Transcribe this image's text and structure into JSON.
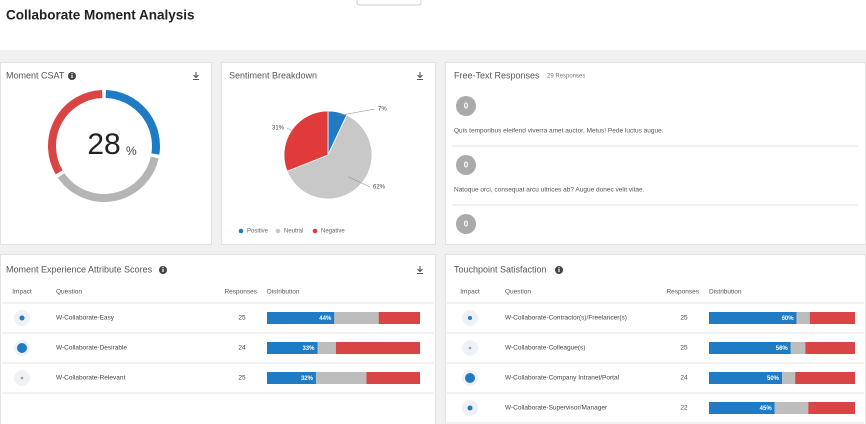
{
  "header": {
    "title": "Collaborate Moment Analysis"
  },
  "csat": {
    "title": "Moment CSAT",
    "score": 28,
    "unit": "%",
    "segments": [
      {
        "color": "#1f7bc4",
        "value": 28
      },
      {
        "color": "#b5b5b5",
        "value": 38
      },
      {
        "color": "#d94444",
        "value": 34
      }
    ]
  },
  "sentiment": {
    "type": "pie",
    "title": "Sentiment Breakdown",
    "categories": [
      "Positive",
      "Neutral",
      "Negative"
    ],
    "values": [
      7,
      62,
      31
    ],
    "value_labels": [
      "7%",
      "62%",
      "31%"
    ],
    "colors": [
      "#1f7bc4",
      "#c8c8c8",
      "#e03a3a"
    ]
  },
  "free_text": {
    "title": "Free-Text Responses",
    "count_label": "29 Responses",
    "items": [
      {
        "badge": 0,
        "text": "Quis temporibus eleifend viverra amet auctor. Metus! Pede luctus augue."
      },
      {
        "badge": 0,
        "text": "Natoque orci, consequat arcu ultrices ab? Augue donec velit vitae."
      },
      {
        "badge": 0
      }
    ]
  },
  "attribute_scores": {
    "title": "Moment Experience Attribute Scores",
    "columns": [
      "Impact",
      "Question",
      "Responses",
      "Distribution"
    ],
    "rows": [
      {
        "question": "W-Collaborate-Easy",
        "responses": 25,
        "distribution": [
          44,
          29,
          27
        ],
        "label": "44%"
      },
      {
        "question": "W-Collaborate-Desirable",
        "responses": 24,
        "distribution": [
          33,
          12,
          55
        ],
        "label": "33%"
      },
      {
        "question": "W-Collaborate-Relevant",
        "responses": 25,
        "distribution": [
          32,
          33,
          35
        ],
        "label": "32%"
      }
    ]
  },
  "touchpoint": {
    "title": "Touchpoint Satisfaction",
    "columns": [
      "Impact",
      "Question",
      "Responses",
      "Distribution"
    ],
    "rows": [
      {
        "question": "W-Collaborate-Contractor(s)/Freelancer(s)",
        "responses": 25,
        "distribution": [
          60,
          9,
          31
        ],
        "label": "60%"
      },
      {
        "question": "W-Collaborate-Colleague(s)",
        "responses": 25,
        "distribution": [
          56,
          10,
          34
        ],
        "label": "56%"
      },
      {
        "question": "W-Collaborate-Company Intranet/Portal",
        "responses": 24,
        "distribution": [
          50,
          9,
          41
        ],
        "label": "50%"
      },
      {
        "question": "W-Collaborate-Supervisor/Manager",
        "responses": 22,
        "distribution": [
          45,
          23,
          32
        ],
        "label": "45%"
      }
    ]
  }
}
